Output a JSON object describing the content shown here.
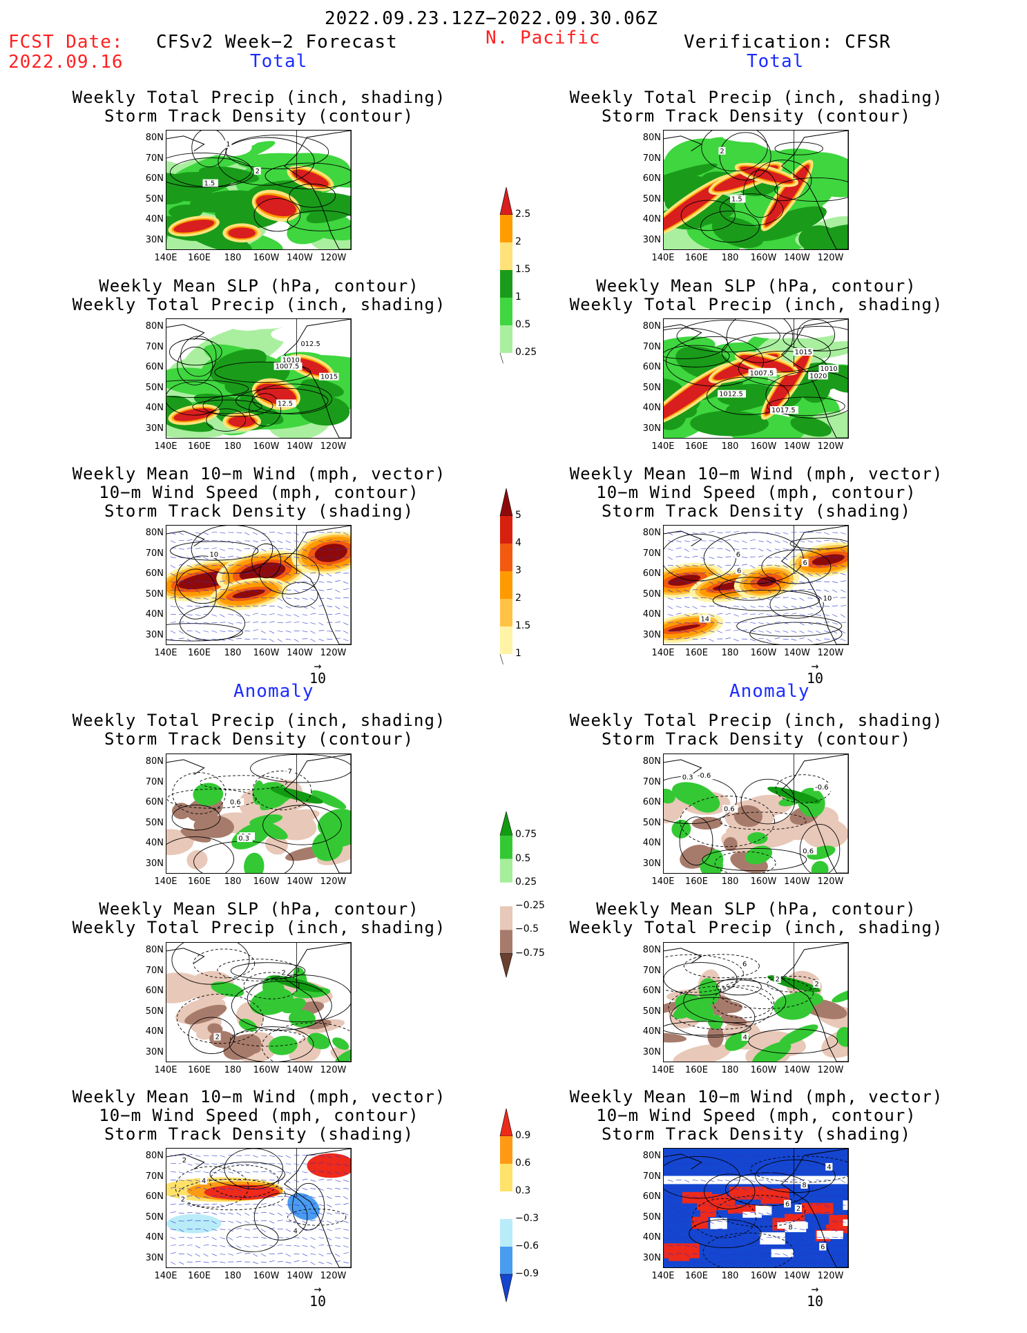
{
  "header": {
    "date_range": "2022.09.23.12Z−2022.09.30.06Z",
    "fcst_label": "FCST Date:",
    "fcst_date": "2022.09.16",
    "model": "CFSv2 Week−2 Forecast",
    "region": "N. Pacific",
    "verification": "Verification: CFSR"
  },
  "sections": {
    "total": "Total",
    "anomaly": "Anomaly"
  },
  "titles": {
    "precip_storm": [
      "Weekly Total Precip (inch, shading)",
      "Storm Track Density (contour)"
    ],
    "slp_precip": [
      "Weekly Mean SLP (hPa, contour)",
      "Weekly Total Precip (inch, shading)"
    ],
    "wind_storm": [
      "Weekly Mean 10−m Wind (mph, vector)",
      "10−m Wind Speed (mph, contour)",
      "Storm Track Density (shading)"
    ]
  },
  "axes": {
    "lat_labels": [
      "80N",
      "70N",
      "60N",
      "50N",
      "40N",
      "30N"
    ],
    "lon_labels": [
      "140E",
      "160E",
      "180",
      "160W",
      "140W",
      "120W"
    ]
  },
  "vector_ref": "10",
  "colorbars": {
    "total_precip": {
      "labels": [
        "2.5",
        "2",
        "1.5",
        "1",
        "0.5",
        "0.25"
      ],
      "colors": [
        "#d81e1e",
        "#ff9d00",
        "#ffe27a",
        "#1a9c1a",
        "#3fd63f",
        "#a9ef9f"
      ]
    },
    "total_storm": {
      "labels": [
        "5",
        "4",
        "3",
        "2",
        "1.5",
        "1"
      ],
      "colors": [
        "#8e0a0a",
        "#d8200e",
        "#f25a10",
        "#ff9a00",
        "#ffc244",
        "#fff3a5"
      ]
    },
    "anom_precip": {
      "labels": [
        "0.75",
        "0.5",
        "0.25",
        "−0.25",
        "−0.5",
        "−0.75"
      ],
      "colors": [
        "#129a12",
        "#34c934",
        "#a6ee9a",
        "#ffffff",
        "#e8c8b8",
        "#a77b6b",
        "#6a3f2f"
      ]
    },
    "anom_storm": {
      "labels": [
        "0.9",
        "0.6",
        "0.3",
        "−0.3",
        "−0.6",
        "−0.9"
      ],
      "colors": [
        "#ee2a1a",
        "#ff9a14",
        "#ffe26a",
        "#ffffff",
        "#b8ecf8",
        "#4a9cf0",
        "#1446d0"
      ]
    }
  },
  "contour_labels": {
    "p1l": [
      "1.5",
      "1",
      "2"
    ],
    "p1r": [
      "1.5",
      "2"
    ],
    "p2l": [
      "1010",
      "12.5",
      "012.5",
      "1007.5",
      "1015"
    ],
    "p2r": [
      "1020",
      "1017.5",
      "1015",
      "1012.5",
      "1010",
      "1007.5",
      "1015"
    ],
    "p3l": [
      "10"
    ],
    "p3r": [
      "6",
      "10",
      "6",
      "14",
      "6"
    ],
    "p4l": [
      "7",
      "0.6",
      "0.9",
      "0.3"
    ],
    "p4r": [
      "-0.6",
      "0.6",
      "-0.6",
      "0.3",
      "0.6"
    ],
    "p5l": [
      "2",
      "2"
    ],
    "p5r": [
      "6",
      "2",
      "4",
      "2"
    ],
    "p6l": [
      "4",
      "2",
      "2",
      "4"
    ],
    "p6r": [
      "6",
      "4",
      "8",
      "2",
      "6",
      "8"
    ]
  }
}
